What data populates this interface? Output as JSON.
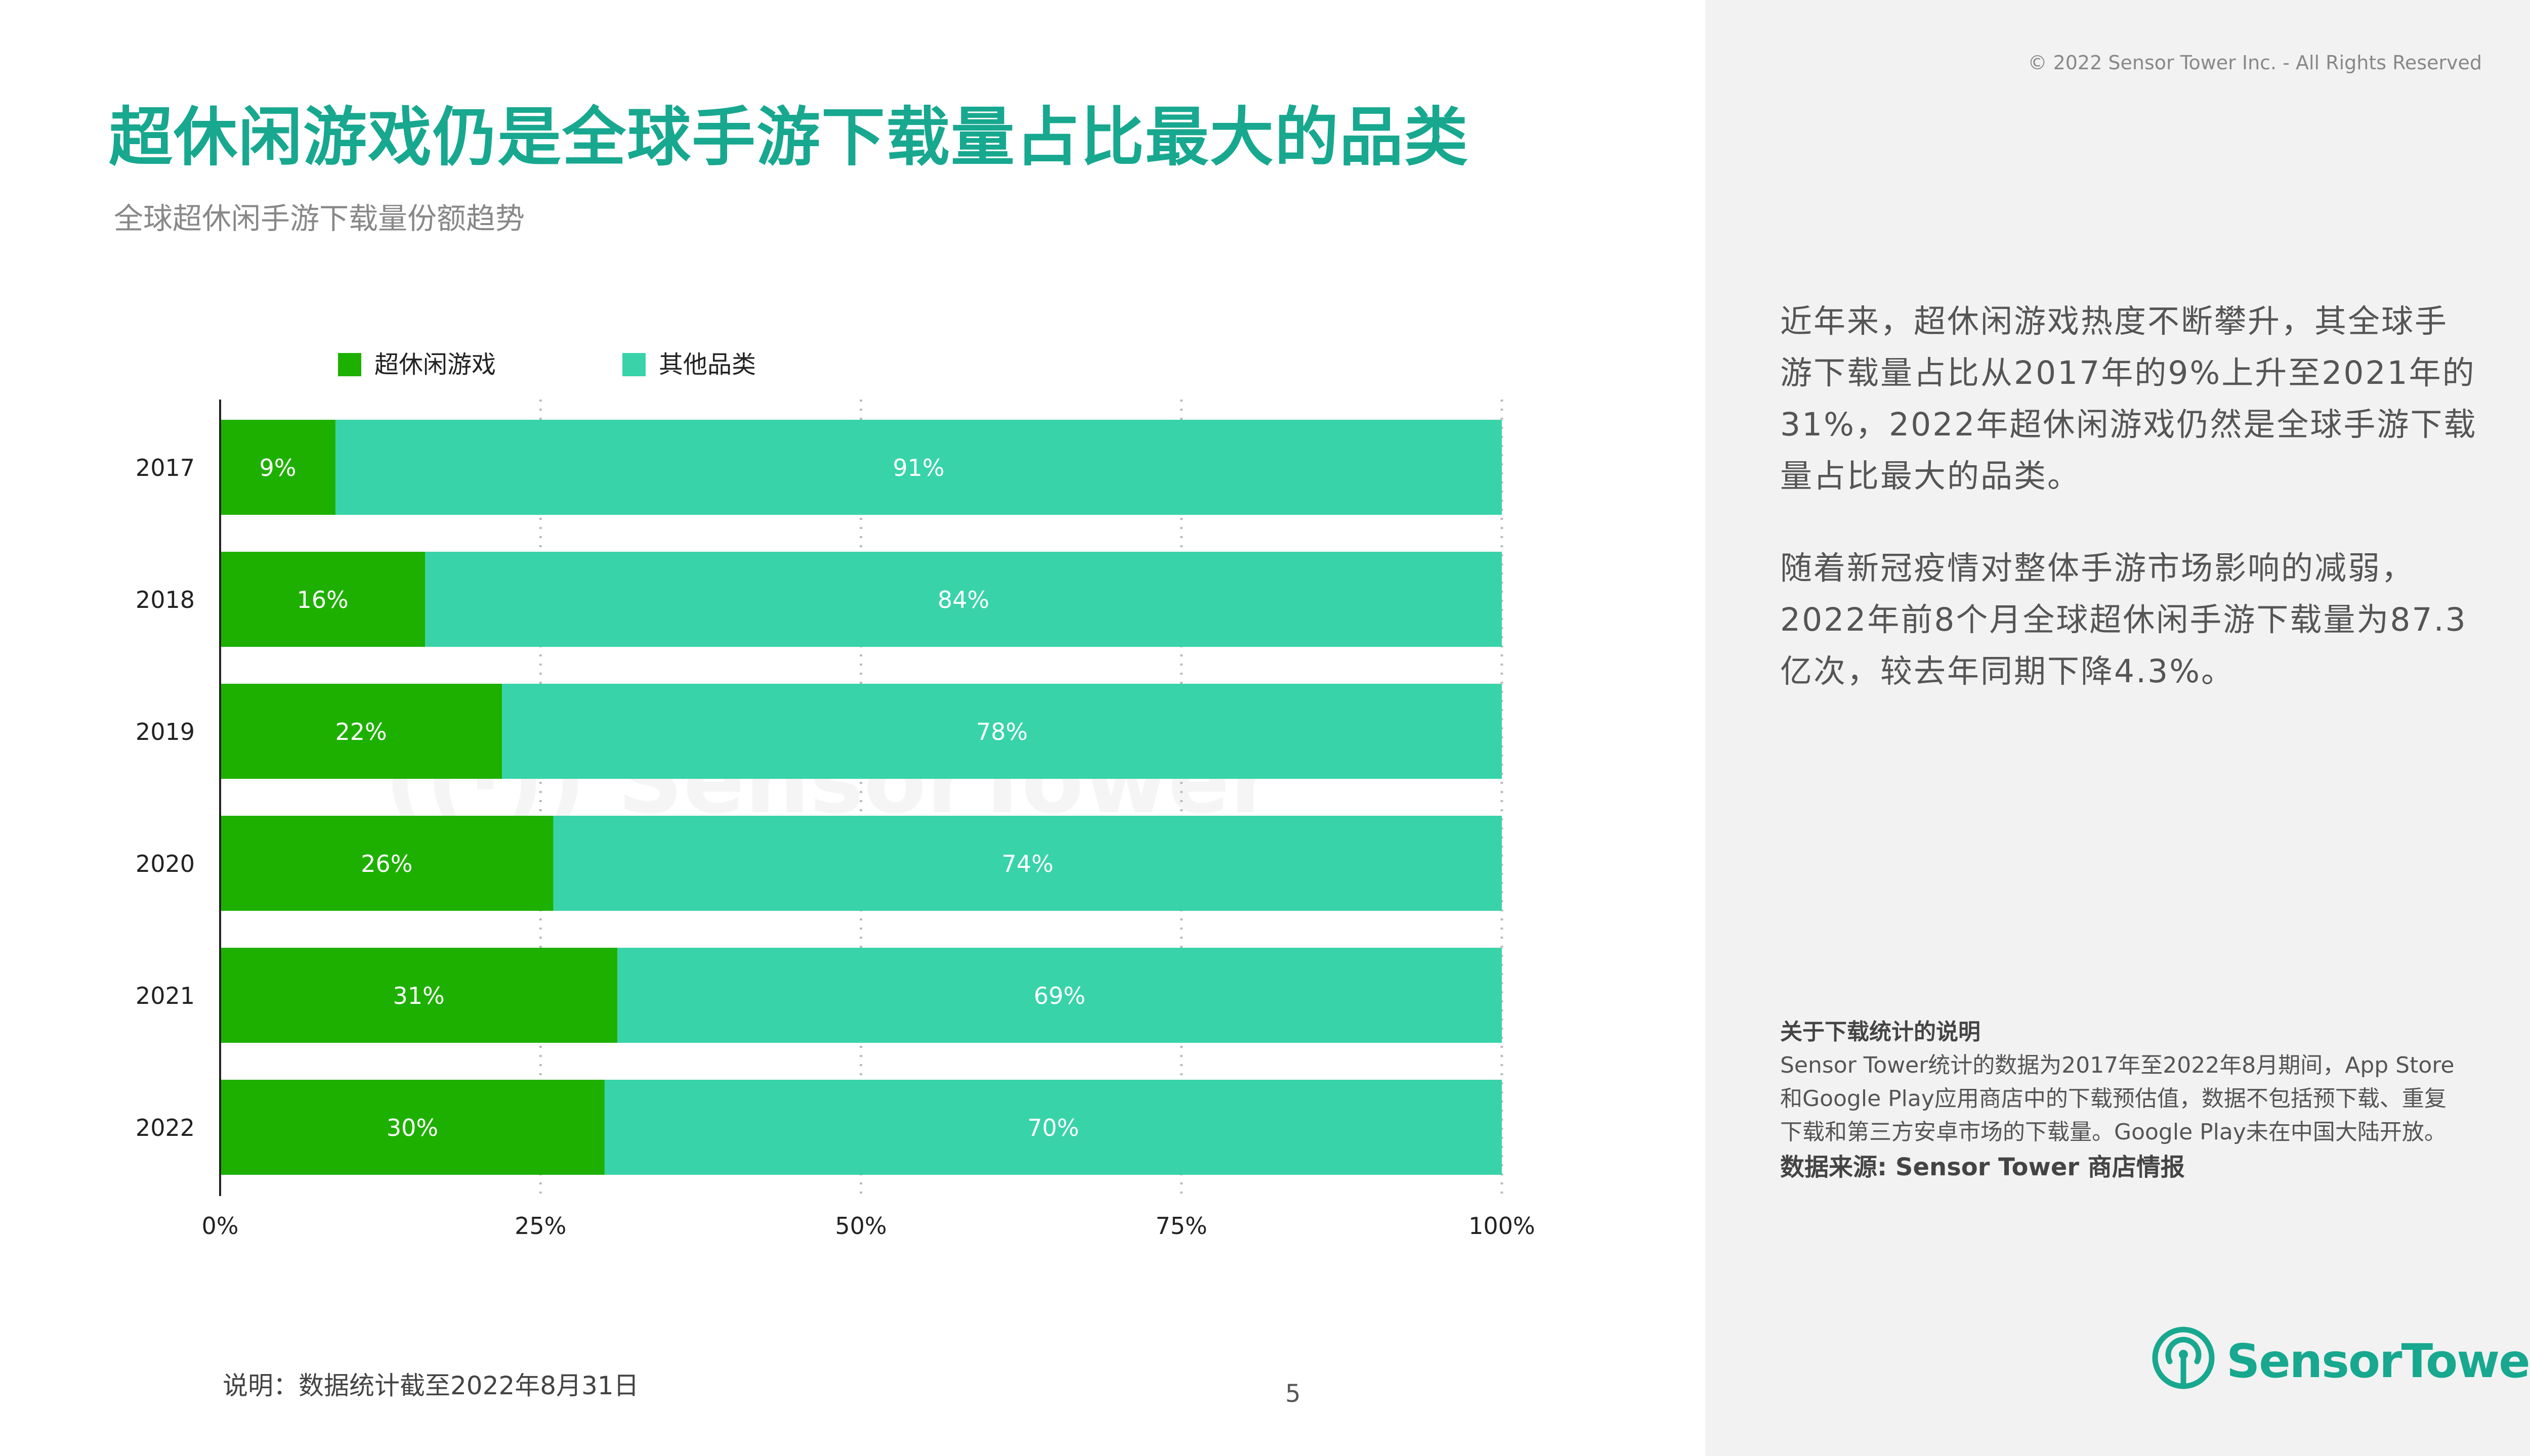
{
  "header": {
    "title": "超休闲游戏仍是全球手游下载量占比最大的品类",
    "subtitle": "全球超休闲手游下载量份额趋势",
    "copyright": "© 2022 Sensor Tower Inc. - All Rights Reserved"
  },
  "legend": {
    "items": [
      {
        "label": "超休闲游戏",
        "color": "#1eb000"
      },
      {
        "label": "其他品类",
        "color": "#38d3a9"
      }
    ]
  },
  "chart_data": {
    "type": "bar",
    "orientation": "horizontal",
    "stacked": true,
    "categories": [
      "2017",
      "2018",
      "2019",
      "2020",
      "2021",
      "2022"
    ],
    "series": [
      {
        "name": "超休闲游戏",
        "color": "#1eb000",
        "values": [
          9,
          16,
          22,
          26,
          31,
          30
        ],
        "labels": [
          "9%",
          "16%",
          "22%",
          "26%",
          "31%",
          "30%"
        ]
      },
      {
        "name": "其他品类",
        "color": "#38d3a9",
        "values": [
          91,
          84,
          78,
          74,
          69,
          70
        ],
        "labels": [
          "91%",
          "84%",
          "78%",
          "74%",
          "69%",
          "70%"
        ]
      }
    ],
    "xlim": [
      0,
      100
    ],
    "xticks": [
      0,
      25,
      50,
      75,
      100
    ],
    "xtick_labels": [
      "0%",
      "25%",
      "50%",
      "75%",
      "100%"
    ],
    "grid": "vertical dotted",
    "legend_position": "top"
  },
  "footnote": "说明：数据统计截至2022年8月31日",
  "page_number": "5",
  "insight": {
    "paragraphs": [
      "近年来，超休闲游戏热度不断攀升，其全球手游下载量占比从2017年的9%上升至2021年的31%，2022年超休闲游戏仍然是全球手游下载量占比最大的品类。",
      "随着新冠疫情对整体手游市场影响的减弱，2022年前8个月全球超休闲手游下载量为87.3亿次，较去年同期下降4.3%。"
    ]
  },
  "note": {
    "title": "关于下载统计的说明",
    "body": "Sensor Tower统计的数据为2017年至2022年8月期间，App Store和Google Play应用商店中的下载预估值，数据不包括预下载、重复下载和第三方安卓市场的下载量。Google Play未在中国大陆开放。",
    "source": "数据来源: Sensor Tower 商店情报"
  },
  "brand": {
    "name": "SensorTower",
    "color": "#17a88f",
    "icon": "sensor-tower-logo-icon"
  }
}
